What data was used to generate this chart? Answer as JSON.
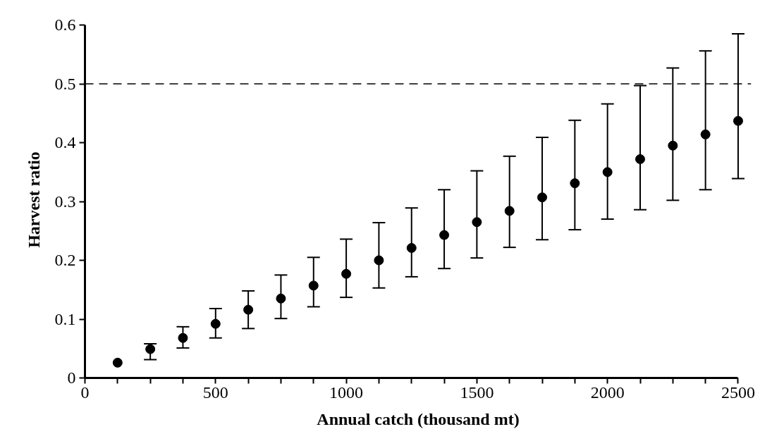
{
  "chart_data": {
    "type": "scatter",
    "xlabel": "Annual catch (thousand mt)",
    "ylabel": "Harvest ratio",
    "x": [
      125,
      250,
      375,
      500,
      625,
      750,
      875,
      1000,
      1125,
      1250,
      1375,
      1500,
      1625,
      1750,
      1875,
      2000,
      2125,
      2250,
      2375,
      2500
    ],
    "series": [
      {
        "color": "#000000",
        "values": [
          0.026,
          0.049,
          0.068,
          0.092,
          0.116,
          0.135,
          0.157,
          0.177,
          0.2,
          0.221,
          0.243,
          0.265,
          0.284,
          0.307,
          0.331,
          0.35,
          0.372,
          0.395,
          0.414,
          0.437
        ],
        "errors": [
          null,
          [
            0.031,
            0.058
          ],
          [
            0.051,
            0.087
          ],
          [
            0.068,
            0.118
          ],
          [
            0.084,
            0.148
          ],
          [
            0.101,
            0.175
          ],
          [
            0.121,
            0.205
          ],
          [
            0.137,
            0.236
          ],
          [
            0.153,
            0.264
          ],
          [
            0.172,
            0.289
          ],
          [
            0.186,
            0.32
          ],
          [
            0.204,
            0.352
          ],
          [
            0.222,
            0.377
          ],
          [
            0.235,
            0.409
          ],
          [
            0.252,
            0.438
          ],
          [
            0.27,
            0.466
          ],
          [
            0.286,
            0.497
          ],
          [
            0.302,
            0.527
          ],
          [
            0.32,
            0.556
          ],
          [
            0.339,
            0.585
          ]
        ]
      }
    ],
    "xlim": [
      0,
      2500
    ],
    "ylim": [
      0,
      0.6
    ],
    "xticks": [
      0,
      {
        "value": 125,
        "label": null
      },
      {
        "value": 250,
        "label": null
      },
      {
        "value": 375,
        "label": null
      },
      500,
      {
        "value": 625,
        "label": null
      },
      {
        "value": 750,
        "label": null
      },
      {
        "value": 875,
        "label": null
      },
      1000,
      {
        "value": 1125,
        "label": null
      },
      {
        "value": 1250,
        "label": null
      },
      {
        "value": 1375,
        "label": null
      },
      1500,
      {
        "value": 1625,
        "label": null
      },
      {
        "value": 1750,
        "label": null
      },
      {
        "value": 1875,
        "label": null
      },
      2000,
      {
        "value": 2125,
        "label": null
      },
      {
        "value": 2250,
        "label": null
      },
      {
        "value": 2375,
        "label": null
      },
      2500
    ],
    "yticks": [
      0,
      0.1,
      0.2,
      0.3,
      0.4,
      0.5,
      0.6
    ],
    "ref_lines": [
      {
        "axis": "y",
        "value": 0.5,
        "line_style": "dashed",
        "color": "#000000"
      }
    ],
    "grid": false,
    "marker": "circle"
  }
}
